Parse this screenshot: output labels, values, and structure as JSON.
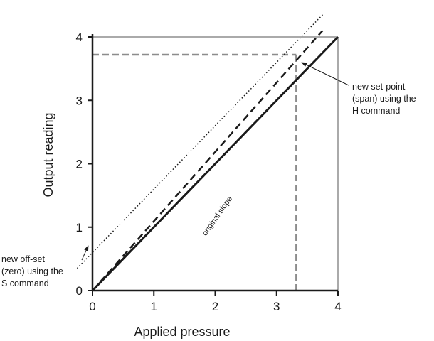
{
  "chart_data": {
    "type": "line",
    "xlabel": "Applied pressure",
    "ylabel": "Output reading",
    "xlim": [
      0,
      4
    ],
    "ylim": [
      0,
      4
    ],
    "x_ticks": [
      "0",
      "1",
      "2",
      "3",
      "4"
    ],
    "y_ticks": [
      "0",
      "1",
      "2",
      "3",
      "4"
    ],
    "series": [
      {
        "name": "original slope",
        "style": "solid",
        "color": "#1a1a1a",
        "x": [
          0,
          4
        ],
        "y": [
          0,
          4
        ]
      },
      {
        "style": "dashed",
        "color": "#1a1a1a",
        "x": [
          0,
          3.75
        ],
        "y": [
          0,
          4.1
        ]
      },
      {
        "style": "dotted",
        "color": "#1a1a1a",
        "x": [
          -0.25,
          3.75
        ],
        "y": [
          0.35,
          4.35
        ]
      }
    ],
    "reference_lines": [
      {
        "style": "dashed",
        "color": "#8c8c8c",
        "from": [
          0,
          3.72
        ],
        "to": [
          3.32,
          3.72
        ]
      },
      {
        "style": "dashed",
        "color": "#8c8c8c",
        "from": [
          3.32,
          0
        ],
        "to": [
          3.32,
          3.72
        ]
      },
      {
        "style": "thin",
        "color": "#555555",
        "from": [
          0,
          4
        ],
        "to": [
          4,
          4
        ]
      },
      {
        "style": "thin",
        "color": "#555555",
        "from": [
          4,
          0
        ],
        "to": [
          4,
          4
        ]
      }
    ],
    "annotations": [
      {
        "id": "span",
        "lines": [
          "new set-point",
          "(span) using the",
          "H command"
        ],
        "arrow_to": [
          3.32,
          3.72
        ]
      },
      {
        "id": "offset",
        "lines": [
          "new off-set",
          "(zero) using the",
          "S command"
        ],
        "arrow_to": [
          0,
          1
        ]
      }
    ]
  }
}
